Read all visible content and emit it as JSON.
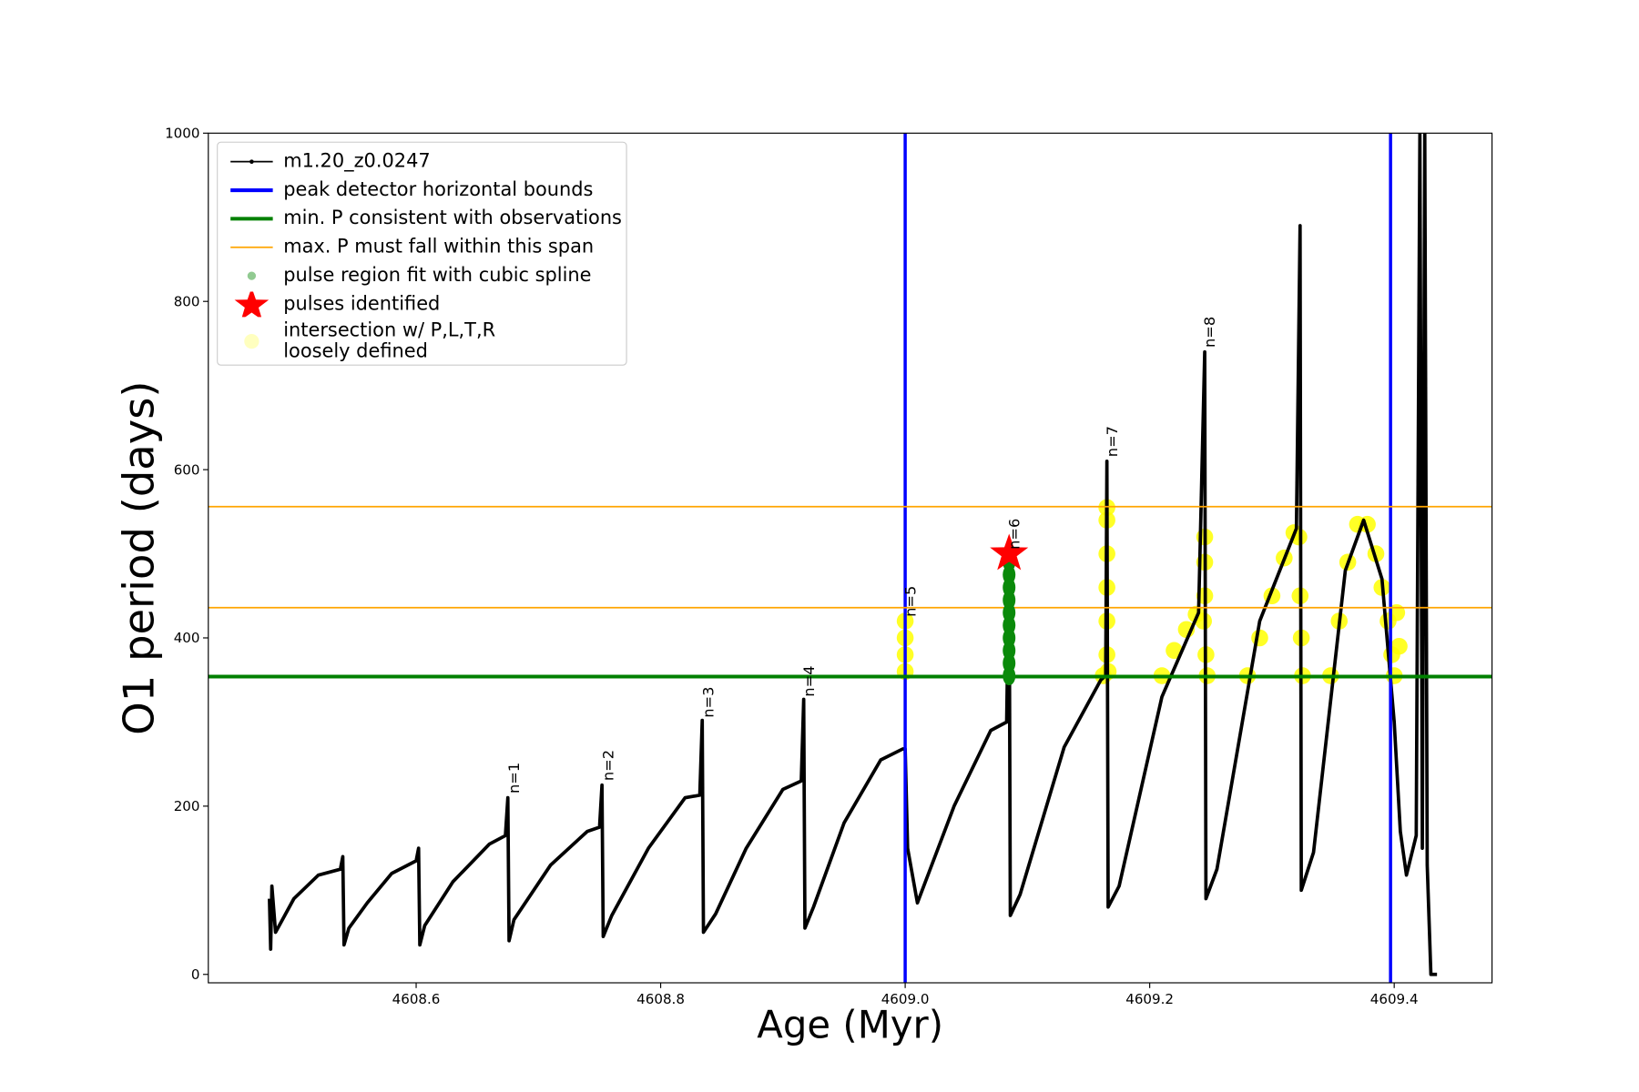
{
  "chart_data": {
    "type": "line",
    "xlabel": "Age (Myr)",
    "ylabel": "O1 period (days)",
    "xlim": [
      4608.43,
      4609.48
    ],
    "ylim": [
      -10,
      1000
    ],
    "xticks": [
      4608.6,
      4608.8,
      {
        "value": 4609,
        "label": "4609.0"
      },
      4609.2,
      4609.4
    ],
    "yticks": [
      0,
      200,
      400,
      600,
      800,
      1000
    ],
    "series": [
      {
        "name": "m1.20_z0.0247",
        "color": "#000000",
        "kind": "line",
        "x": [
          4608.48,
          4608.481,
          4608.482,
          4608.485,
          4608.5,
          4608.52,
          4608.538,
          4608.54,
          4608.541,
          4608.545,
          4608.56,
          4608.58,
          4608.6,
          4608.602,
          4608.603,
          4608.607,
          4608.63,
          4608.66,
          4608.673,
          4608.675,
          4608.676,
          4608.68,
          4608.71,
          4608.74,
          4608.75,
          4608.752,
          4608.753,
          4608.76,
          4608.79,
          4608.82,
          4608.832,
          4608.834,
          4608.835,
          4608.845,
          4608.87,
          4608.9,
          4608.915,
          4608.917,
          4608.918,
          4608.925,
          4608.95,
          4608.98,
          4608.998,
          4609.0,
          4609.002,
          4609.01,
          4609.04,
          4609.07,
          4609.083,
          4609.085,
          4609.086,
          4609.094,
          4609.13,
          4609.16,
          4609.164,
          4609.165,
          4609.166,
          4609.175,
          4609.21,
          4609.24,
          4609.245,
          4609.246,
          4609.255,
          4609.29,
          4609.32,
          4609.323,
          4609.324,
          4609.334,
          4609.36,
          4609.375,
          4609.39,
          4609.4,
          4609.405,
          4609.41,
          4609.418,
          4609.421,
          4609.423,
          4609.425,
          4609.427,
          4609.43,
          4609.435
        ],
        "values": [
          90,
          30,
          105,
          50,
          90,
          118,
          125,
          140,
          35,
          55,
          85,
          120,
          135,
          150,
          35,
          58,
          110,
          155,
          165,
          210,
          40,
          65,
          130,
          170,
          175,
          225,
          45,
          70,
          150,
          210,
          213,
          302,
          50,
          72,
          150,
          220,
          230,
          327,
          55,
          80,
          180,
          255,
          268,
          268,
          150,
          85,
          200,
          290,
          300,
          500,
          70,
          95,
          270,
          350,
          355,
          610,
          80,
          105,
          330,
          430,
          740,
          90,
          125,
          420,
          530,
          890,
          100,
          145,
          480,
          540,
          470,
          300,
          170,
          118,
          165,
          1000,
          150,
          1000,
          130,
          0,
          0
        ]
      },
      {
        "name": "peak detector horizontal bounds",
        "color": "#0000ff",
        "kind": "vline",
        "x": [
          4609.0,
          4609.397
        ]
      },
      {
        "name": "min. P consistent with observations",
        "color": "#008000",
        "kind": "hline",
        "values": [
          354
        ]
      },
      {
        "name": "max. P must fall within this span",
        "color": "#ffa500",
        "kind": "hline",
        "values": [
          436,
          556
        ]
      },
      {
        "name": "pulse region fit with cubic spline",
        "color": "#0a8a0a",
        "kind": "dots",
        "x": [
          4609.085,
          4609.085,
          4609.085,
          4609.085,
          4609.085,
          4609.085,
          4609.085,
          4609.085,
          4609.085,
          4609.085,
          4609.085
        ],
        "values": [
          355,
          370,
          385,
          400,
          415,
          430,
          445,
          460,
          475,
          490,
          500
        ]
      },
      {
        "name": "pulses identified",
        "color": "#ff0000",
        "kind": "star",
        "x": [
          4609.085
        ],
        "values": [
          500
        ]
      },
      {
        "name": "intersection w/ P,L,T,R\nloosely defined",
        "color": "#ffff00",
        "kind": "blobs",
        "x": [
          4609.0,
          4609.0,
          4609.0,
          4609.0,
          4609.162,
          4609.166,
          4609.165,
          4609.165,
          4609.165,
          4609.165,
          4609.165,
          4609.165,
          4609.21,
          4609.22,
          4609.23,
          4609.238,
          4609.244,
          4609.246,
          4609.247,
          4609.245,
          4609.245,
          4609.245,
          4609.28,
          4609.29,
          4609.3,
          4609.31,
          4609.318,
          4609.322,
          4609.323,
          4609.324,
          4609.325,
          4609.348,
          4609.355,
          4609.362,
          4609.37,
          4609.378,
          4609.385,
          4609.39,
          4609.395,
          4609.398,
          4609.4,
          4609.402,
          4609.404
        ],
        "values": [
          360,
          380,
          400,
          420,
          355,
          360,
          380,
          420,
          460,
          500,
          540,
          555,
          355,
          385,
          410,
          428,
          420,
          380,
          355,
          450,
          490,
          520,
          355,
          400,
          450,
          495,
          525,
          520,
          450,
          400,
          355,
          355,
          420,
          490,
          535,
          535,
          500,
          460,
          420,
          380,
          355,
          430,
          390
        ]
      }
    ],
    "annotations": [
      {
        "text": "n=1",
        "x": 4608.68,
        "y": 215
      },
      {
        "text": "n=2",
        "x": 4608.757,
        "y": 230
      },
      {
        "text": "n=3",
        "x": 4608.839,
        "y": 305
      },
      {
        "text": "n=4",
        "x": 4608.921,
        "y": 330
      },
      {
        "text": "n=5",
        "x": 4609.004,
        "y": 425
      },
      {
        "text": "n=6",
        "x": 4609.089,
        "y": 505
      },
      {
        "text": "n=7",
        "x": 4609.169,
        "y": 615
      },
      {
        "text": "n=8",
        "x": 4609.249,
        "y": 745
      }
    ],
    "legend": "upper left"
  }
}
